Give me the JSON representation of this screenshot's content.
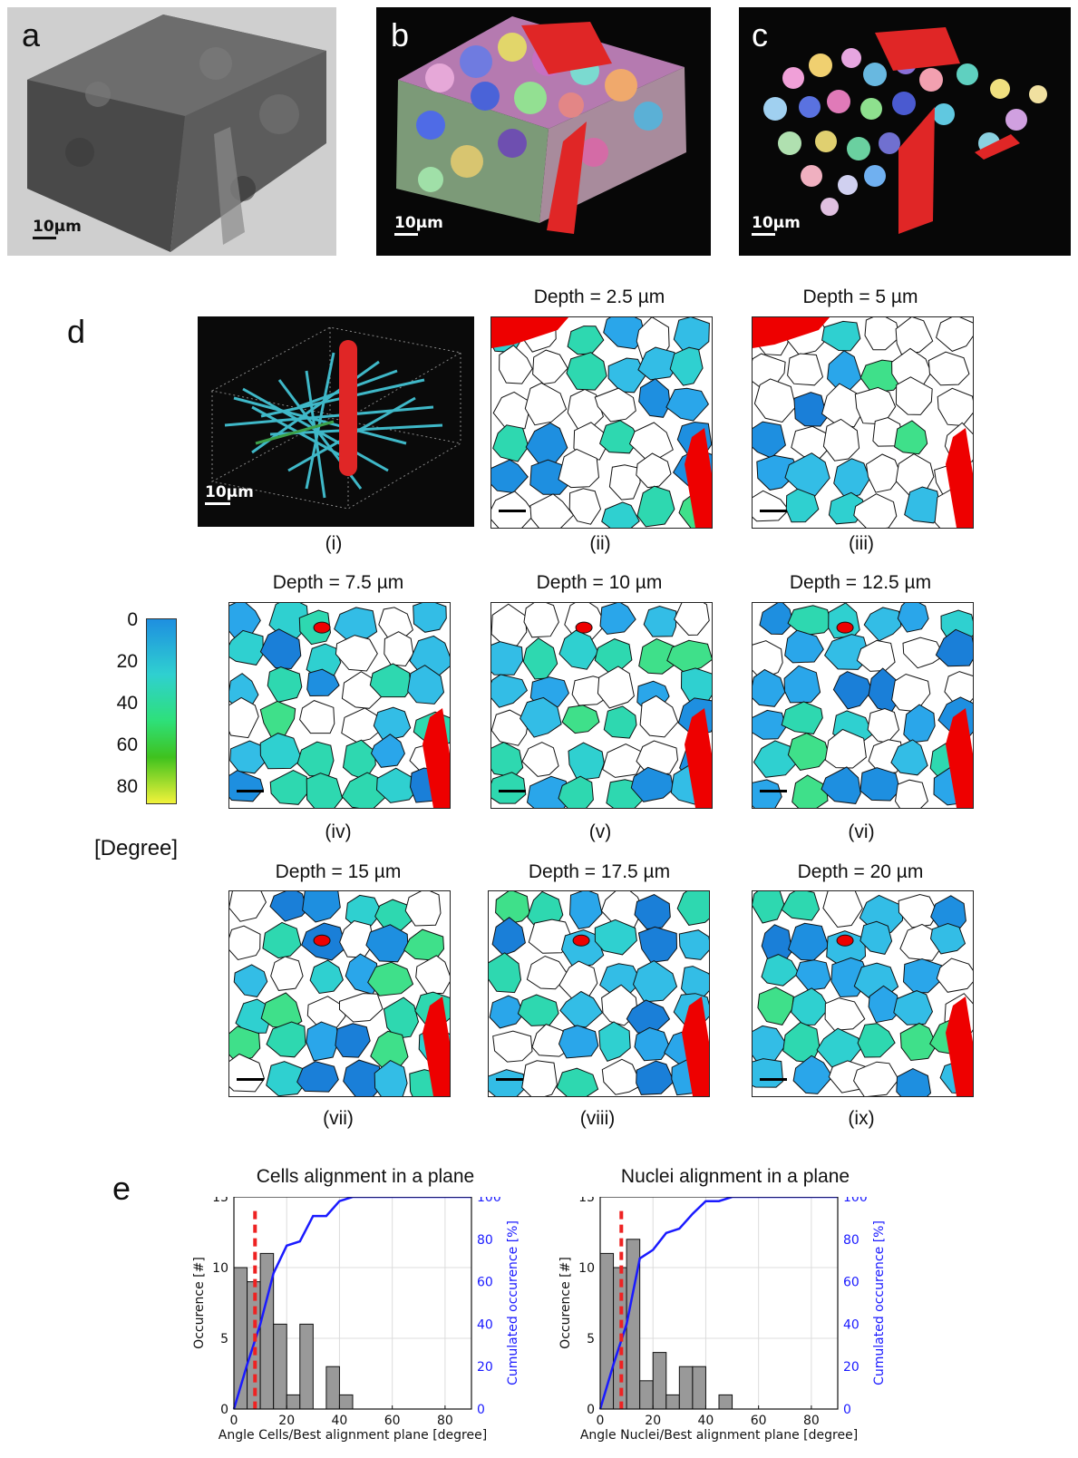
{
  "panels": {
    "a": {
      "label": "a",
      "scale": "10µm"
    },
    "b": {
      "label": "b",
      "scale": "10µm"
    },
    "c": {
      "label": "c",
      "scale": "10µm"
    },
    "d": {
      "label": "d",
      "scale": "10µm"
    },
    "e": {
      "label": "e"
    }
  },
  "slices": [
    {
      "roman": "(i)",
      "title": ""
    },
    {
      "roman": "(ii)",
      "title": "Depth = 2.5 µm"
    },
    {
      "roman": "(iii)",
      "title": "Depth = 5 µm"
    },
    {
      "roman": "(iv)",
      "title": "Depth = 7.5 µm"
    },
    {
      "roman": "(v)",
      "title": "Depth = 10 µm"
    },
    {
      "roman": "(vi)",
      "title": "Depth = 12.5 µm"
    },
    {
      "roman": "(vii)",
      "title": "Depth = 15 µm"
    },
    {
      "roman": "(viii)",
      "title": "Depth = 17.5 µm"
    },
    {
      "roman": "(ix)",
      "title": "Depth = 20 µm"
    }
  ],
  "colorbar": {
    "ticks": [
      "0",
      "20",
      "40",
      "60",
      "80"
    ],
    "unit": "[Degree]",
    "colors": [
      "#1e8fe0",
      "#2fd0d0",
      "#2ee07a",
      "#3fc21e",
      "#f2f23a"
    ]
  },
  "chart_data": [
    {
      "type": "bar",
      "title": "Cells alignment in a plane",
      "xlabel": "Angle Cells/Best alignment plane [degree]",
      "ylabel": "Occurence [#]",
      "y2label": "Cumulated occurence [%]",
      "xlim": [
        0,
        90
      ],
      "ylim": [
        0,
        15
      ],
      "y2lim": [
        0,
        100
      ],
      "xticks": [
        0,
        20,
        40,
        60,
        80
      ],
      "yticks": [
        0,
        5,
        10,
        15
      ],
      "y2ticks": [
        0,
        20,
        40,
        60,
        80,
        100
      ],
      "bin_width": 5,
      "bins": [
        0,
        5,
        10,
        15,
        20,
        25,
        30,
        35,
        40
      ],
      "values": [
        10,
        9,
        11,
        6,
        1,
        6,
        0,
        3,
        1
      ],
      "mean_line": 8,
      "cumulative": {
        "x": [
          0,
          5,
          10,
          15,
          20,
          25,
          30,
          35,
          40,
          45,
          90
        ],
        "y": [
          0,
          21,
          40,
          64,
          77,
          79,
          91,
          91,
          98,
          100,
          100
        ]
      },
      "grid": true,
      "bar_color": "#999999",
      "cum_color": "#1a1aff",
      "mean_color": "#ee2222"
    },
    {
      "type": "bar",
      "title": "Nuclei alignment in a plane",
      "xlabel": "Angle Nuclei/Best alignment plane [degree]",
      "ylabel": "Occurence [#]",
      "y2label": "Cumulated occurence [%]",
      "xlim": [
        0,
        90
      ],
      "ylim": [
        0,
        15
      ],
      "y2lim": [
        0,
        100
      ],
      "xticks": [
        0,
        20,
        40,
        60,
        80
      ],
      "yticks": [
        0,
        5,
        10,
        15
      ],
      "y2ticks": [
        0,
        20,
        40,
        60,
        80,
        100
      ],
      "bin_width": 5,
      "bins": [
        0,
        5,
        10,
        15,
        20,
        25,
        30,
        35,
        40,
        45
      ],
      "values": [
        11,
        10,
        12,
        2,
        4,
        1,
        3,
        3,
        0,
        1
      ],
      "mean_line": 8,
      "cumulative": {
        "x": [
          0,
          5,
          10,
          15,
          20,
          25,
          30,
          35,
          40,
          45,
          50,
          55,
          90
        ],
        "y": [
          0,
          21,
          40,
          71,
          75,
          83,
          85,
          92,
          98,
          98,
          100,
          100,
          100
        ]
      },
      "grid": true,
      "bar_color": "#999999",
      "cum_color": "#1a1aff",
      "mean_color": "#ee2222"
    }
  ]
}
